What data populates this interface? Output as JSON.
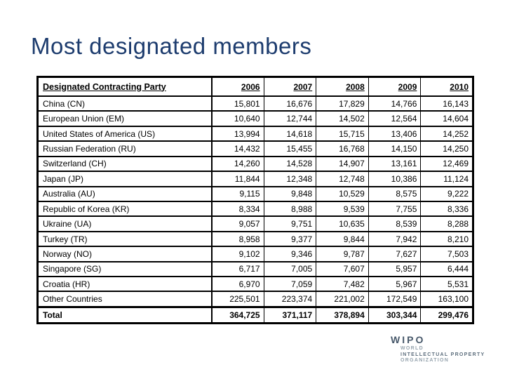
{
  "slide": {
    "title": "Most designated members"
  },
  "table": {
    "header": {
      "party": "Designated Contracting Party",
      "years": [
        "2006",
        "2007",
        "2008",
        "2009",
        "2010"
      ]
    },
    "rows": [
      {
        "party": "China (CN)",
        "values": [
          "15,801",
          "16,676",
          "17,829",
          "14,766",
          "16,143"
        ]
      },
      {
        "party": "European Union (EM)",
        "values": [
          "10,640",
          "12,744",
          "14,502",
          "12,564",
          "14,604"
        ]
      },
      {
        "party": "United States of America (US)",
        "values": [
          "13,994",
          "14,618",
          "15,715",
          "13,406",
          "14,252"
        ]
      },
      {
        "party": "Russian Federation (RU)",
        "values": [
          "14,432",
          "15,455",
          "16,768",
          "14,150",
          "14,250"
        ]
      },
      {
        "party": "Switzerland (CH)",
        "values": [
          "14,260",
          "14,528",
          "14,907",
          "13,161",
          "12,469"
        ]
      },
      {
        "party": "Japan (JP)",
        "values": [
          "11,844",
          "12,348",
          "12,748",
          "10,386",
          "11,124"
        ]
      },
      {
        "party": "Australia (AU)",
        "values": [
          "9,115",
          "9,848",
          "10,529",
          "8,575",
          "9,222"
        ]
      },
      {
        "party": "Republic of Korea (KR)",
        "values": [
          "8,334",
          "8,988",
          "9,539",
          "7,755",
          "8,336"
        ]
      },
      {
        "party": "Ukraine (UA)",
        "values": [
          "9,057",
          "9,751",
          "10,635",
          "8,539",
          "8,288"
        ]
      },
      {
        "party": "Turkey (TR)",
        "values": [
          "8,958",
          "9,377",
          "9,844",
          "7,942",
          "8,210"
        ]
      },
      {
        "party": "Norway (NO)",
        "values": [
          "9,102",
          "9,346",
          "9,787",
          "7,627",
          "7,503"
        ]
      },
      {
        "party": "Singapore (SG)",
        "values": [
          "6,717",
          "7,005",
          "7,607",
          "5,957",
          "6,444"
        ]
      },
      {
        "party": "Croatia (HR)",
        "values": [
          "6,970",
          "7,059",
          "7,482",
          "5,967",
          "5,531"
        ]
      },
      {
        "party": "Other Countries",
        "values": [
          "225,501",
          "223,374",
          "221,002",
          "172,549",
          "163,100"
        ]
      }
    ],
    "total": {
      "party": "Total",
      "values": [
        "364,725",
        "371,117",
        "378,894",
        "303,344",
        "299,476"
      ]
    }
  },
  "logo": {
    "wipo": "WIPO",
    "world": "WORLD",
    "intellectual_property": "INTELLECTUAL PROPERTY",
    "organization": "ORGANIZATION"
  },
  "colors": {
    "title": "#1d3c6e",
    "table_border": "#000000",
    "logo_primary": "#47586a",
    "logo_secondary": "#95a3ad"
  }
}
